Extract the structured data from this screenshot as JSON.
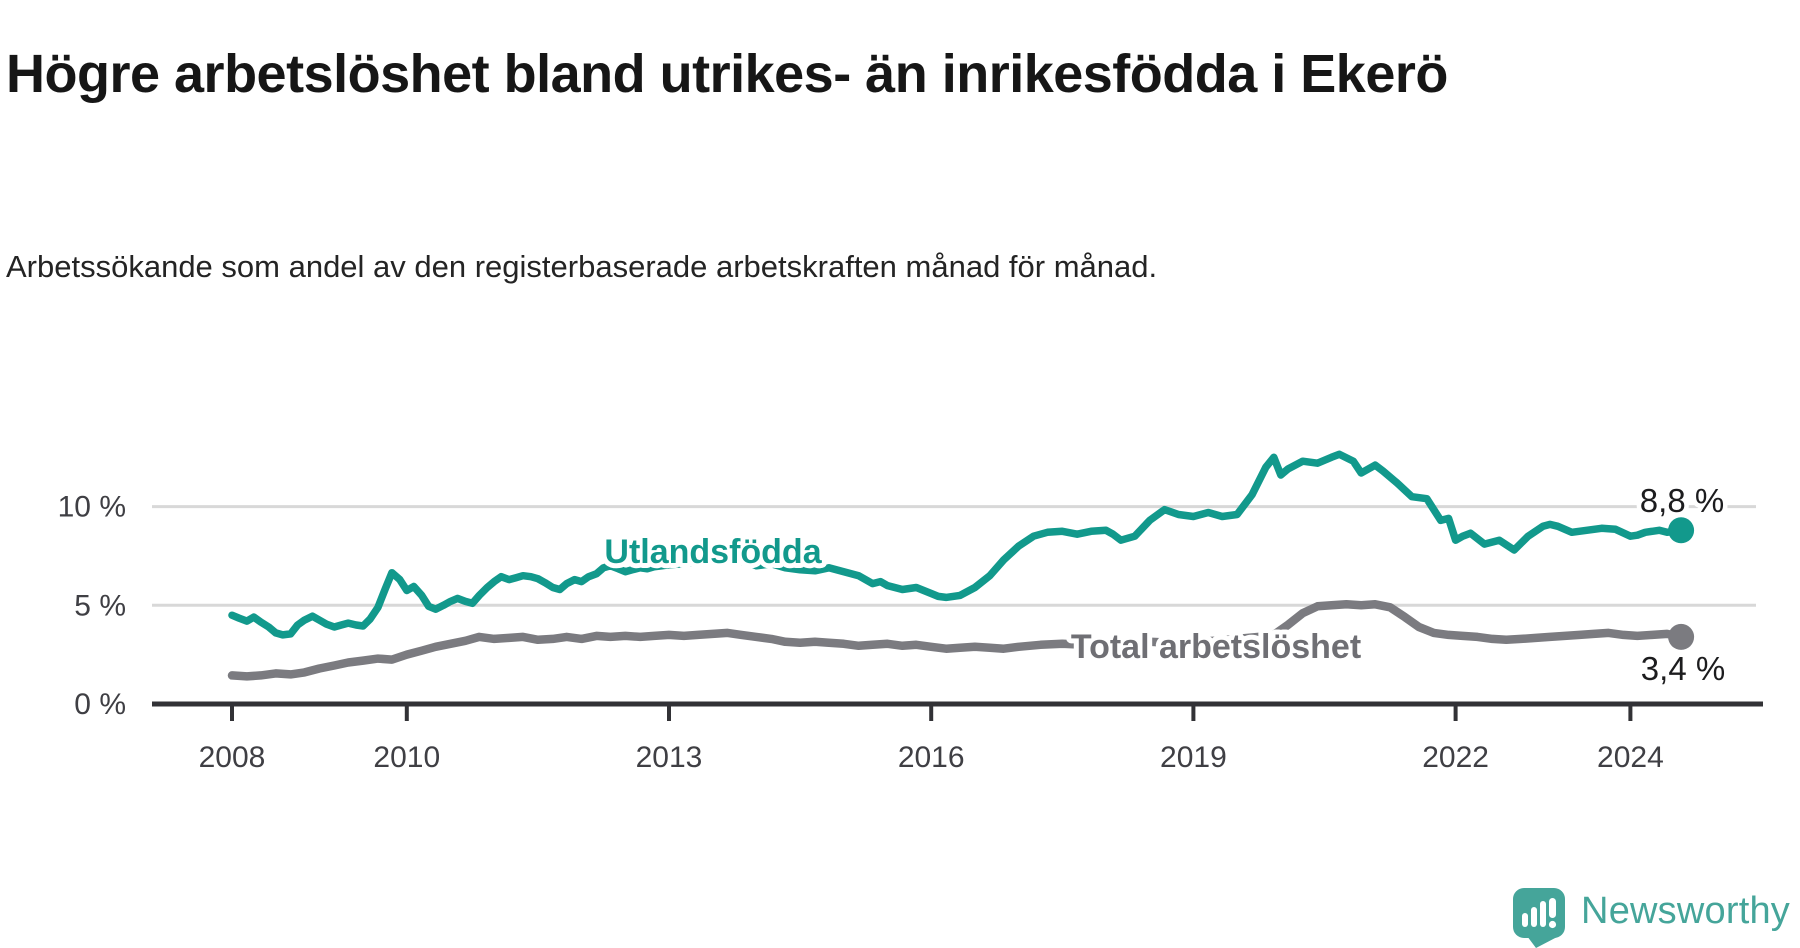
{
  "title": "Högre arbetslöshet bland utrikes- än inrikesfödda i Ekerö",
  "subtitle": "Arbetssökande som andel av den registerbaserade arbetskraften månad för månad.",
  "footer": {
    "brand": "Newsworthy"
  },
  "colors": {
    "teal": "#12998c",
    "gray_line": "#7b7b80",
    "gray_label": "#6f6f74",
    "axis": "#323236",
    "grid": "#d8d8d8",
    "tick_text": "#3f3f44",
    "value_text": "#1c1c1e",
    "logo": "#45a59a"
  },
  "chart_data": {
    "type": "line",
    "title": "Högre arbetslöshet bland utrikes- än inrikesfödda i Ekerö",
    "subtitle": "Arbetssökande som andel av den registerbaserade arbetskraften månad för månad.",
    "unit": "%",
    "grid": "horizontal",
    "legend_position": "inline-labels",
    "x_axis": {
      "range": [
        2007.9,
        2025.4
      ],
      "tick_values": [
        2008,
        2010,
        2013,
        2016,
        2019,
        2022,
        2024
      ],
      "tick_labels": [
        "2008",
        "2010",
        "2013",
        "2016",
        "2019",
        "2022",
        "2024"
      ]
    },
    "y_axis": {
      "range": [
        0,
        13.2
      ],
      "tick_values": [
        0,
        5,
        10
      ],
      "tick_labels": [
        "0 %",
        "5 %",
        "10 %"
      ]
    },
    "series": [
      {
        "name": "Utlandsfödda",
        "color": "#12998c",
        "end_value": 8.8,
        "end_label": "8,8 %",
        "points": [
          [
            2008.0,
            4.5
          ],
          [
            2008.08,
            4.35
          ],
          [
            2008.17,
            4.2
          ],
          [
            2008.25,
            4.4
          ],
          [
            2008.33,
            4.15
          ],
          [
            2008.42,
            3.9
          ],
          [
            2008.5,
            3.6
          ],
          [
            2008.58,
            3.5
          ],
          [
            2008.67,
            3.55
          ],
          [
            2008.75,
            4.0
          ],
          [
            2008.83,
            4.25
          ],
          [
            2008.92,
            4.45
          ],
          [
            2009.0,
            4.25
          ],
          [
            2009.08,
            4.05
          ],
          [
            2009.17,
            3.9
          ],
          [
            2009.25,
            4.0
          ],
          [
            2009.33,
            4.1
          ],
          [
            2009.42,
            4.0
          ],
          [
            2009.5,
            3.95
          ],
          [
            2009.58,
            4.3
          ],
          [
            2009.67,
            4.9
          ],
          [
            2009.75,
            5.8
          ],
          [
            2009.83,
            6.65
          ],
          [
            2009.92,
            6.3
          ],
          [
            2010.0,
            5.75
          ],
          [
            2010.08,
            5.95
          ],
          [
            2010.17,
            5.5
          ],
          [
            2010.25,
            4.95
          ],
          [
            2010.33,
            4.8
          ],
          [
            2010.42,
            5.0
          ],
          [
            2010.5,
            5.2
          ],
          [
            2010.58,
            5.35
          ],
          [
            2010.67,
            5.2
          ],
          [
            2010.75,
            5.1
          ],
          [
            2010.83,
            5.5
          ],
          [
            2010.92,
            5.9
          ],
          [
            2011.0,
            6.2
          ],
          [
            2011.08,
            6.45
          ],
          [
            2011.17,
            6.3
          ],
          [
            2011.25,
            6.4
          ],
          [
            2011.33,
            6.5
          ],
          [
            2011.42,
            6.45
          ],
          [
            2011.5,
            6.35
          ],
          [
            2011.58,
            6.15
          ],
          [
            2011.67,
            5.9
          ],
          [
            2011.75,
            5.8
          ],
          [
            2011.83,
            6.1
          ],
          [
            2011.92,
            6.3
          ],
          [
            2012.0,
            6.2
          ],
          [
            2012.08,
            6.45
          ],
          [
            2012.17,
            6.6
          ],
          [
            2012.25,
            6.9
          ],
          [
            2012.33,
            7.0
          ],
          [
            2012.42,
            6.85
          ],
          [
            2012.5,
            6.7
          ],
          [
            2012.58,
            6.8
          ],
          [
            2012.67,
            6.9
          ],
          [
            2012.75,
            6.85
          ],
          [
            2012.83,
            6.95
          ],
          [
            2012.92,
            7.0
          ],
          [
            2013.0,
            7.05
          ],
          [
            2013.17,
            7.1
          ],
          [
            2013.33,
            7.2
          ],
          [
            2013.5,
            7.3
          ],
          [
            2013.58,
            7.45
          ],
          [
            2013.67,
            7.5
          ],
          [
            2013.75,
            7.3
          ],
          [
            2013.92,
            7.15
          ],
          [
            2014.0,
            7.0
          ],
          [
            2014.17,
            7.1
          ],
          [
            2014.33,
            6.9
          ],
          [
            2014.5,
            6.8
          ],
          [
            2014.67,
            6.75
          ],
          [
            2014.83,
            6.9
          ],
          [
            2015.0,
            6.7
          ],
          [
            2015.17,
            6.5
          ],
          [
            2015.33,
            6.1
          ],
          [
            2015.42,
            6.2
          ],
          [
            2015.5,
            6.0
          ],
          [
            2015.67,
            5.8
          ],
          [
            2015.83,
            5.9
          ],
          [
            2016.0,
            5.6
          ],
          [
            2016.08,
            5.45
          ],
          [
            2016.17,
            5.4
          ],
          [
            2016.33,
            5.5
          ],
          [
            2016.5,
            5.9
          ],
          [
            2016.67,
            6.5
          ],
          [
            2016.83,
            7.3
          ],
          [
            2017.0,
            8.0
          ],
          [
            2017.17,
            8.5
          ],
          [
            2017.33,
            8.7
          ],
          [
            2017.5,
            8.75
          ],
          [
            2017.67,
            8.6
          ],
          [
            2017.83,
            8.75
          ],
          [
            2018.0,
            8.8
          ],
          [
            2018.08,
            8.6
          ],
          [
            2018.17,
            8.3
          ],
          [
            2018.33,
            8.5
          ],
          [
            2018.5,
            9.3
          ],
          [
            2018.67,
            9.85
          ],
          [
            2018.83,
            9.6
          ],
          [
            2019.0,
            9.5
          ],
          [
            2019.17,
            9.7
          ],
          [
            2019.33,
            9.5
          ],
          [
            2019.5,
            9.6
          ],
          [
            2019.67,
            10.6
          ],
          [
            2019.83,
            12.0
          ],
          [
            2019.92,
            12.5
          ],
          [
            2020.0,
            11.6
          ],
          [
            2020.08,
            11.9
          ],
          [
            2020.25,
            12.3
          ],
          [
            2020.42,
            12.2
          ],
          [
            2020.58,
            12.5
          ],
          [
            2020.67,
            12.65
          ],
          [
            2020.83,
            12.3
          ],
          [
            2020.92,
            11.7
          ],
          [
            2021.08,
            12.1
          ],
          [
            2021.17,
            11.8
          ],
          [
            2021.33,
            11.2
          ],
          [
            2021.5,
            10.5
          ],
          [
            2021.67,
            10.4
          ],
          [
            2021.83,
            9.3
          ],
          [
            2021.92,
            9.4
          ],
          [
            2022.0,
            8.3
          ],
          [
            2022.08,
            8.5
          ],
          [
            2022.17,
            8.65
          ],
          [
            2022.33,
            8.1
          ],
          [
            2022.5,
            8.3
          ],
          [
            2022.67,
            7.8
          ],
          [
            2022.83,
            8.5
          ],
          [
            2023.0,
            9.0
          ],
          [
            2023.08,
            9.1
          ],
          [
            2023.17,
            9.0
          ],
          [
            2023.33,
            8.7
          ],
          [
            2023.5,
            8.8
          ],
          [
            2023.67,
            8.9
          ],
          [
            2023.83,
            8.85
          ],
          [
            2024.0,
            8.5
          ],
          [
            2024.08,
            8.55
          ],
          [
            2024.17,
            8.7
          ],
          [
            2024.33,
            8.8
          ],
          [
            2024.42,
            8.7
          ],
          [
            2024.58,
            8.8
          ]
        ]
      },
      {
        "name": "Total arbetslöshet",
        "color": "#7b7b80",
        "end_value": 3.4,
        "end_label": "3,4 %",
        "points": [
          [
            2008.0,
            1.45
          ],
          [
            2008.17,
            1.4
          ],
          [
            2008.33,
            1.45
          ],
          [
            2008.5,
            1.55
          ],
          [
            2008.67,
            1.5
          ],
          [
            2008.83,
            1.6
          ],
          [
            2009.0,
            1.8
          ],
          [
            2009.17,
            1.95
          ],
          [
            2009.33,
            2.1
          ],
          [
            2009.5,
            2.2
          ],
          [
            2009.67,
            2.3
          ],
          [
            2009.83,
            2.25
          ],
          [
            2010.0,
            2.5
          ],
          [
            2010.17,
            2.7
          ],
          [
            2010.33,
            2.9
          ],
          [
            2010.5,
            3.05
          ],
          [
            2010.67,
            3.2
          ],
          [
            2010.83,
            3.4
          ],
          [
            2011.0,
            3.3
          ],
          [
            2011.17,
            3.35
          ],
          [
            2011.33,
            3.4
          ],
          [
            2011.5,
            3.25
          ],
          [
            2011.67,
            3.3
          ],
          [
            2011.83,
            3.4
          ],
          [
            2012.0,
            3.3
          ],
          [
            2012.17,
            3.45
          ],
          [
            2012.33,
            3.4
          ],
          [
            2012.5,
            3.45
          ],
          [
            2012.67,
            3.4
          ],
          [
            2012.83,
            3.45
          ],
          [
            2013.0,
            3.5
          ],
          [
            2013.17,
            3.45
          ],
          [
            2013.33,
            3.5
          ],
          [
            2013.5,
            3.55
          ],
          [
            2013.67,
            3.6
          ],
          [
            2013.83,
            3.5
          ],
          [
            2014.0,
            3.4
          ],
          [
            2014.17,
            3.3
          ],
          [
            2014.33,
            3.15
          ],
          [
            2014.5,
            3.1
          ],
          [
            2014.67,
            3.15
          ],
          [
            2014.83,
            3.1
          ],
          [
            2015.0,
            3.05
          ],
          [
            2015.17,
            2.95
          ],
          [
            2015.33,
            3.0
          ],
          [
            2015.5,
            3.05
          ],
          [
            2015.67,
            2.95
          ],
          [
            2015.83,
            3.0
          ],
          [
            2016.0,
            2.9
          ],
          [
            2016.17,
            2.8
          ],
          [
            2016.33,
            2.85
          ],
          [
            2016.5,
            2.9
          ],
          [
            2016.67,
            2.85
          ],
          [
            2016.83,
            2.8
          ],
          [
            2017.0,
            2.9
          ],
          [
            2017.25,
            3.0
          ],
          [
            2017.5,
            3.05
          ],
          [
            2017.75,
            3.0
          ],
          [
            2018.0,
            3.0
          ],
          [
            2018.25,
            3.1
          ],
          [
            2018.5,
            3.15
          ],
          [
            2018.75,
            3.1
          ],
          [
            2019.0,
            3.15
          ],
          [
            2019.25,
            3.2
          ],
          [
            2019.5,
            3.3
          ],
          [
            2019.75,
            3.4
          ],
          [
            2019.92,
            3.5
          ],
          [
            2020.08,
            4.0
          ],
          [
            2020.25,
            4.6
          ],
          [
            2020.42,
            4.95
          ],
          [
            2020.58,
            5.0
          ],
          [
            2020.75,
            5.05
          ],
          [
            2020.92,
            5.0
          ],
          [
            2021.08,
            5.05
          ],
          [
            2021.25,
            4.9
          ],
          [
            2021.42,
            4.4
          ],
          [
            2021.58,
            3.9
          ],
          [
            2021.75,
            3.6
          ],
          [
            2021.92,
            3.5
          ],
          [
            2022.08,
            3.45
          ],
          [
            2022.25,
            3.4
          ],
          [
            2022.42,
            3.3
          ],
          [
            2022.58,
            3.25
          ],
          [
            2022.75,
            3.3
          ],
          [
            2022.92,
            3.35
          ],
          [
            2023.08,
            3.4
          ],
          [
            2023.25,
            3.45
          ],
          [
            2023.42,
            3.5
          ],
          [
            2023.58,
            3.55
          ],
          [
            2023.75,
            3.6
          ],
          [
            2023.92,
            3.5
          ],
          [
            2024.08,
            3.45
          ],
          [
            2024.25,
            3.5
          ],
          [
            2024.42,
            3.55
          ],
          [
            2024.58,
            3.4
          ]
        ]
      }
    ]
  }
}
